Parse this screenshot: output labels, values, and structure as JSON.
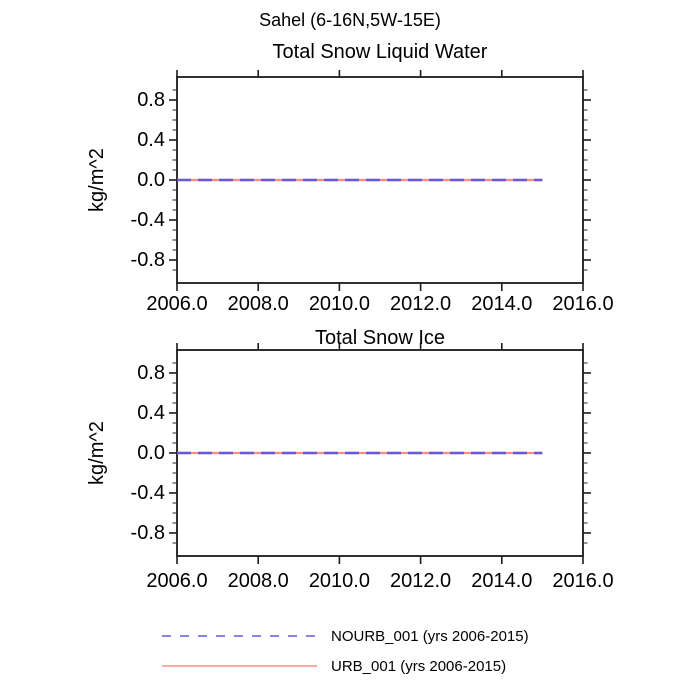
{
  "page": {
    "title": "Sahel (6-16N,5W-15E)"
  },
  "chart_data": [
    {
      "type": "line",
      "title": "Total Snow Liquid Water",
      "xlabel": "",
      "ylabel": "kg/m^2",
      "xlim": [
        2006.0,
        2016.0
      ],
      "ylim": [
        -1.03,
        1.03
      ],
      "xticks": [
        2006.0,
        2008.0,
        2010.0,
        2012.0,
        2014.0,
        2016.0
      ],
      "yticks": [
        0.8,
        0.4,
        0.0,
        -0.4,
        -0.8
      ],
      "yminor_step": 0.1,
      "grid": false,
      "series": [
        {
          "name": "NOURB_001 (yrs 2006-2015)",
          "style": "dashed",
          "color": "#665ad8",
          "x": [
            2006.0,
            2015.0
          ],
          "y": [
            0.0,
            0.0
          ]
        },
        {
          "name": "URB_001 (yrs 2006-2015)",
          "style": "solid",
          "color": "#ff8a80",
          "x": [
            2006.0,
            2015.0
          ],
          "y": [
            0.0,
            0.0
          ]
        }
      ]
    },
    {
      "type": "line",
      "title": "Total Snow Ice",
      "xlabel": "",
      "ylabel": "kg/m^2",
      "xlim": [
        2006.0,
        2016.0
      ],
      "ylim": [
        -1.03,
        1.03
      ],
      "xticks": [
        2006.0,
        2008.0,
        2010.0,
        2012.0,
        2014.0,
        2016.0
      ],
      "yticks": [
        0.8,
        0.4,
        0.0,
        -0.4,
        -0.8
      ],
      "yminor_step": 0.1,
      "grid": false,
      "series": [
        {
          "name": "NOURB_001 (yrs 2006-2015)",
          "style": "dashed",
          "color": "#665ad8",
          "x": [
            2006.0,
            2015.0
          ],
          "y": [
            0.0,
            0.0
          ]
        },
        {
          "name": "URB_001 (yrs 2006-2015)",
          "style": "solid",
          "color": "#ff8a80",
          "x": [
            2006.0,
            2015.0
          ],
          "y": [
            0.0,
            0.0
          ]
        }
      ]
    }
  ],
  "legend": {
    "position": "bottom",
    "entries": [
      {
        "label": "NOURB_001 (yrs 2006-2015)",
        "style": "dashed",
        "color": "#7673e6"
      },
      {
        "label": "URB_001 (yrs 2006-2015)",
        "style": "solid",
        "color": "#ff8a80"
      }
    ]
  }
}
